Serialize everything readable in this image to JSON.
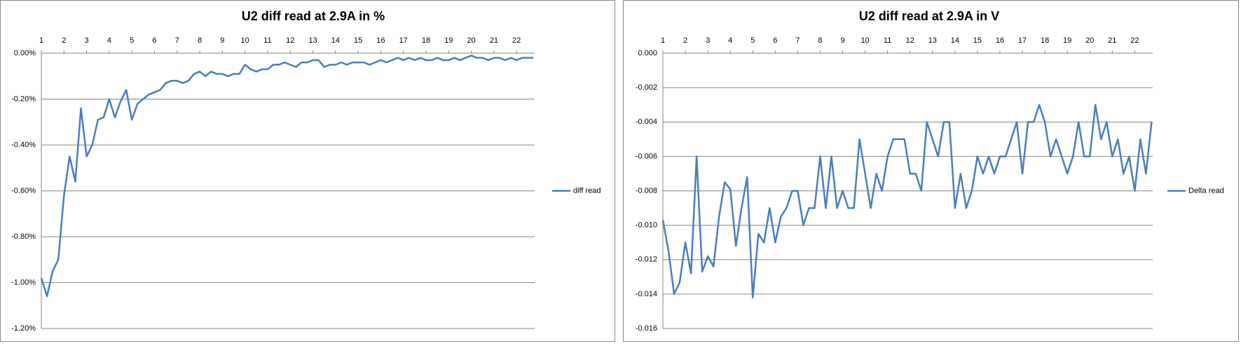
{
  "chart_data": [
    {
      "type": "line",
      "title": "U2 diff read at 2.9A in %",
      "grid": true,
      "legend": "right",
      "xlim": [
        1,
        22.8
      ],
      "xticks": [
        1,
        2,
        3,
        4,
        5,
        6,
        7,
        8,
        9,
        10,
        11,
        12,
        13,
        14,
        15,
        16,
        17,
        18,
        19,
        20,
        21,
        22
      ],
      "ylim": [
        -1.2,
        0
      ],
      "yticks": [
        {
          "value": 0,
          "label": "0.00%"
        },
        {
          "value": -0.2,
          "label": "-0.20%"
        },
        {
          "value": -0.4,
          "label": "-0.40%"
        },
        {
          "value": -0.6,
          "label": "-0.60%"
        },
        {
          "value": -0.8,
          "label": "-0.80%"
        },
        {
          "value": -1.0,
          "label": "-1.00%"
        },
        {
          "value": -1.2,
          "label": "-1.20%"
        }
      ],
      "x": [
        1,
        1.25,
        1.5,
        1.75,
        2,
        2.25,
        2.5,
        2.75,
        3,
        3.25,
        3.5,
        3.75,
        4,
        4.25,
        4.5,
        4.75,
        5,
        5.25,
        5.5,
        5.75,
        6,
        6.25,
        6.5,
        6.75,
        7,
        7.25,
        7.5,
        7.75,
        8,
        8.25,
        8.5,
        8.75,
        9,
        9.25,
        9.5,
        9.75,
        10,
        10.25,
        10.5,
        10.75,
        11,
        11.25,
        11.5,
        11.75,
        12,
        12.25,
        12.5,
        12.75,
        13,
        13.25,
        13.5,
        13.75,
        14,
        14.25,
        14.5,
        14.75,
        15,
        15.25,
        15.5,
        15.75,
        16,
        16.25,
        16.5,
        16.75,
        17,
        17.25,
        17.5,
        17.75,
        18,
        18.25,
        18.5,
        18.75,
        19,
        19.25,
        19.5,
        19.75,
        20,
        20.25,
        20.5,
        20.75,
        21,
        21.25,
        21.5,
        21.75,
        22,
        22.25,
        22.5,
        22.75
      ],
      "series": [
        {
          "name": "diff read",
          "color": "#4a7ebb",
          "values": [
            -0.98,
            -1.06,
            -0.95,
            -0.9,
            -0.62,
            -0.45,
            -0.56,
            -0.24,
            -0.45,
            -0.4,
            -0.29,
            -0.28,
            -0.2,
            -0.28,
            -0.21,
            -0.16,
            -0.29,
            -0.22,
            -0.2,
            -0.18,
            -0.17,
            -0.16,
            -0.13,
            -0.12,
            -0.12,
            -0.13,
            -0.12,
            -0.09,
            -0.08,
            -0.1,
            -0.08,
            -0.09,
            -0.09,
            -0.1,
            -0.09,
            -0.09,
            -0.05,
            -0.07,
            -0.08,
            -0.07,
            -0.07,
            -0.05,
            -0.05,
            -0.04,
            -0.05,
            -0.06,
            -0.04,
            -0.04,
            -0.03,
            -0.03,
            -0.06,
            -0.05,
            -0.05,
            -0.04,
            -0.05,
            -0.04,
            -0.04,
            -0.04,
            -0.05,
            -0.04,
            -0.03,
            -0.04,
            -0.03,
            -0.02,
            -0.03,
            -0.02,
            -0.03,
            -0.02,
            -0.03,
            -0.03,
            -0.02,
            -0.03,
            -0.03,
            -0.02,
            -0.03,
            -0.02,
            -0.01,
            -0.02,
            -0.02,
            -0.03,
            -0.02,
            -0.02,
            -0.03,
            -0.02,
            -0.03,
            -0.02,
            -0.02,
            -0.02
          ]
        }
      ]
    },
    {
      "type": "line",
      "title": "U2 diff read at 2.9A in V",
      "grid": true,
      "legend": "right",
      "xlim": [
        1,
        22.8
      ],
      "xticks": [
        1,
        2,
        3,
        4,
        5,
        6,
        7,
        8,
        9,
        10,
        11,
        12,
        13,
        14,
        15,
        16,
        17,
        18,
        19,
        20,
        21,
        22
      ],
      "ylim": [
        -0.016,
        0
      ],
      "yticks": [
        {
          "value": 0,
          "label": "0.000"
        },
        {
          "value": -0.002,
          "label": "-0.002"
        },
        {
          "value": -0.004,
          "label": "-0.004"
        },
        {
          "value": -0.006,
          "label": "-0.006"
        },
        {
          "value": -0.008,
          "label": "-0.008"
        },
        {
          "value": -0.01,
          "label": "-0.010"
        },
        {
          "value": -0.012,
          "label": "-0.012"
        },
        {
          "value": -0.014,
          "label": "-0.014"
        },
        {
          "value": -0.016,
          "label": "-0.016"
        }
      ],
      "x": [
        1,
        1.25,
        1.5,
        1.75,
        2,
        2.25,
        2.5,
        2.75,
        3,
        3.25,
        3.5,
        3.75,
        4,
        4.25,
        4.5,
        4.75,
        5,
        5.25,
        5.5,
        5.75,
        6,
        6.25,
        6.5,
        6.75,
        7,
        7.25,
        7.5,
        7.75,
        8,
        8.25,
        8.5,
        8.75,
        9,
        9.25,
        9.5,
        9.75,
        10,
        10.25,
        10.5,
        10.75,
        11,
        11.25,
        11.5,
        11.75,
        12,
        12.25,
        12.5,
        12.75,
        13,
        13.25,
        13.5,
        13.75,
        14,
        14.25,
        14.5,
        14.75,
        15,
        15.25,
        15.5,
        15.75,
        16,
        16.25,
        16.5,
        16.75,
        17,
        17.25,
        17.5,
        17.75,
        18,
        18.25,
        18.5,
        18.75,
        19,
        19.25,
        19.5,
        19.75,
        20,
        20.25,
        20.5,
        20.75,
        21,
        21.25,
        21.5,
        21.75,
        22,
        22.25,
        22.5,
        22.75
      ],
      "series": [
        {
          "name": "Delta read",
          "color": "#4a7ebb",
          "values": [
            -0.0097,
            -0.0115,
            -0.014,
            -0.0133,
            -0.011,
            -0.0128,
            -0.006,
            -0.0127,
            -0.0118,
            -0.0124,
            -0.0095,
            -0.0075,
            -0.0079,
            -0.0112,
            -0.009,
            -0.0072,
            -0.0142,
            -0.0105,
            -0.011,
            -0.009,
            -0.011,
            -0.0095,
            -0.009,
            -0.008,
            -0.008,
            -0.01,
            -0.009,
            -0.009,
            -0.006,
            -0.009,
            -0.006,
            -0.009,
            -0.008,
            -0.009,
            -0.009,
            -0.005,
            -0.007,
            -0.009,
            -0.007,
            -0.008,
            -0.006,
            -0.005,
            -0.005,
            -0.005,
            -0.007,
            -0.007,
            -0.008,
            -0.004,
            -0.005,
            -0.006,
            -0.004,
            -0.004,
            -0.009,
            -0.007,
            -0.009,
            -0.008,
            -0.006,
            -0.007,
            -0.006,
            -0.007,
            -0.006,
            -0.006,
            -0.005,
            -0.004,
            -0.007,
            -0.004,
            -0.004,
            -0.003,
            -0.004,
            -0.006,
            -0.005,
            -0.006,
            -0.007,
            -0.006,
            -0.004,
            -0.006,
            -0.006,
            -0.003,
            -0.005,
            -0.004,
            -0.006,
            -0.005,
            -0.007,
            -0.006,
            -0.008,
            -0.005,
            -0.007,
            -0.004
          ]
        }
      ]
    }
  ]
}
